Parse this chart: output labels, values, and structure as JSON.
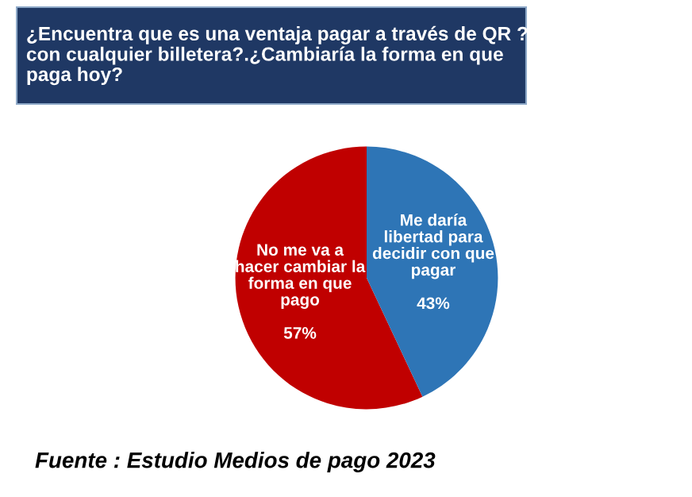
{
  "chart_data": {
    "type": "pie",
    "title": "¿Encuentra que es una ventaja pagar a través de QR ?\ncon cualquier billetera?.¿Cambiaría la forma en que\npaga hoy?",
    "categories": [
      "No me va a\nhacer cambiar la\nforma en que\npago",
      "Me daría\nlibertad para\ndecidir con que\npagar"
    ],
    "values": [
      57,
      43
    ],
    "colors": [
      "#c00000",
      "#2e75b6"
    ],
    "value_labels": [
      "57%",
      "43%"
    ],
    "legend": false,
    "annotations": [
      "Fuente : Estudio Medios de pago 2023"
    ]
  }
}
